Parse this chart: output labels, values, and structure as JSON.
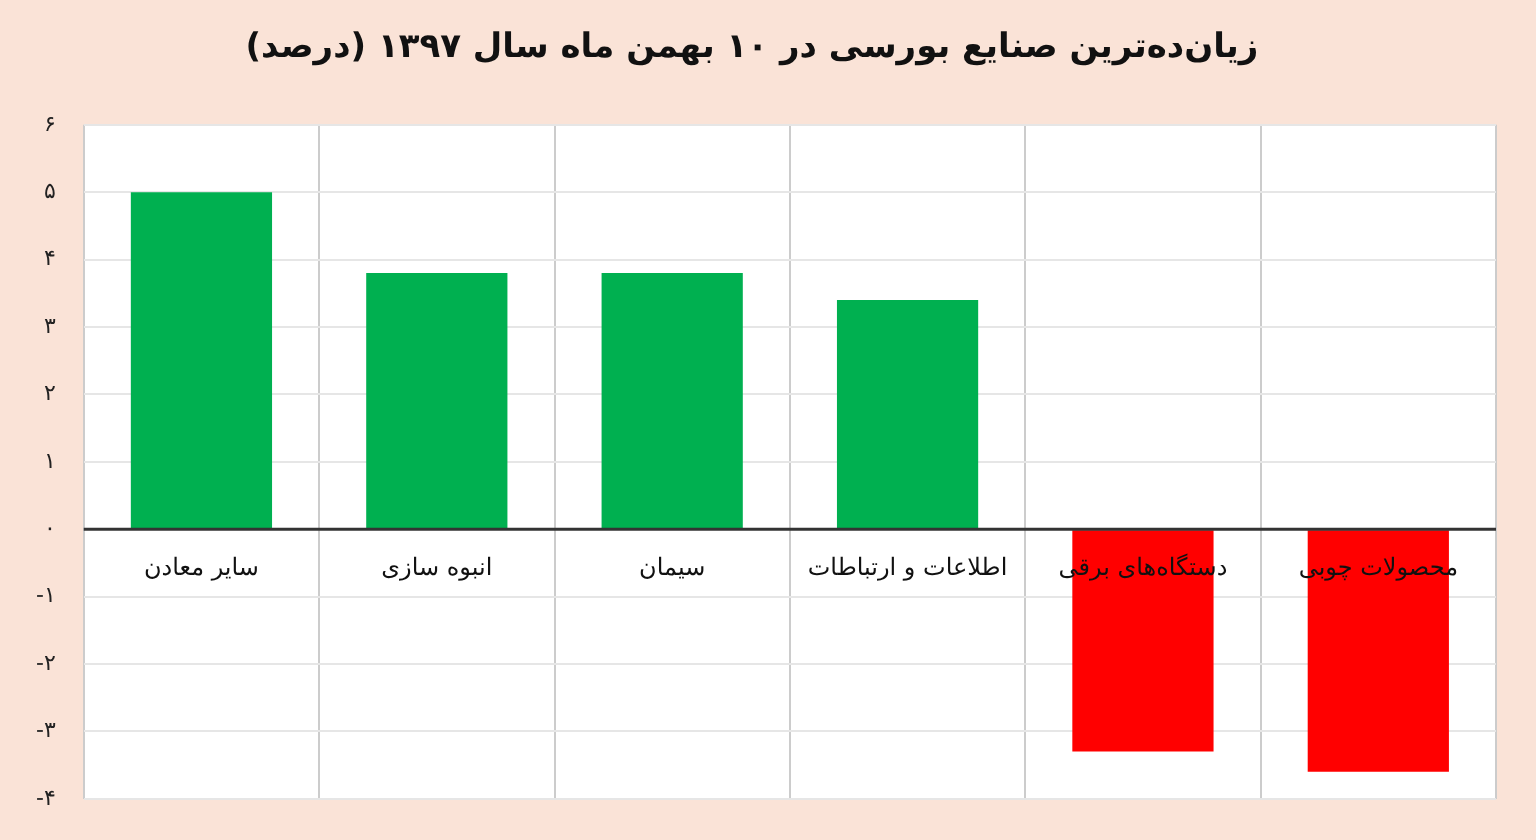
{
  "chart_data": {
    "type": "bar",
    "title": "زیان‌ده‌ترین صنایع بورسی در ۱۰ بهمن ماه سال ۱۳۹۷ (درصد)",
    "categories": [
      "سایر معادن",
      "انبوه سازی",
      "سیمان",
      "اطلاعات و ارتباطات",
      "دستگاه‌های برقی",
      "محصولات چوبی"
    ],
    "values": [
      5.0,
      3.8,
      3.8,
      3.4,
      -3.3,
      -3.6
    ],
    "colors": [
      "#00b050",
      "#00b050",
      "#00b050",
      "#00b050",
      "#ff0000",
      "#ff0000"
    ],
    "ylim": [
      -4,
      6
    ],
    "yticks": [
      {
        "value": -4,
        "label": "-۴"
      },
      {
        "value": -3,
        "label": "-۳"
      },
      {
        "value": -2,
        "label": "-۲"
      },
      {
        "value": -1,
        "label": "-۱"
      },
      {
        "value": 0,
        "label": "۰"
      },
      {
        "value": 1,
        "label": "۱"
      },
      {
        "value": 2,
        "label": "۲"
      },
      {
        "value": 3,
        "label": "۳"
      },
      {
        "value": 4,
        "label": "۴"
      },
      {
        "value": 5,
        "label": "۵"
      },
      {
        "value": 6,
        "label": "۶"
      }
    ],
    "grid": true,
    "legend": false
  }
}
